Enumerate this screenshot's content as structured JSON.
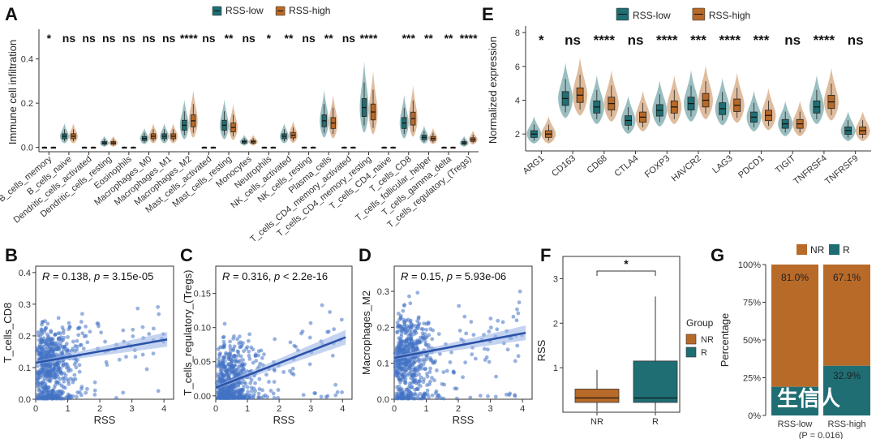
{
  "colors": {
    "low": "#1f6e74",
    "high": "#b86a28",
    "scatter": "#4472c4",
    "fit": "#2a52a8",
    "ribbon": "#9db5e6"
  },
  "chart_data": [
    {
      "panel": "A",
      "type": "violin",
      "ylabel": "Immune cell infiltration",
      "yticks": [
        "0.0",
        "0.2",
        "0.4"
      ],
      "ylim": [
        -0.02,
        0.52
      ],
      "legend": [
        "RSS-low",
        "RSS-high"
      ],
      "categories": [
        "B_cells_memory",
        "B_cells_naive",
        "Dendritic_cells_activated",
        "Dendritic_cells_resting",
        "Eosinophils",
        "Macrophages_M0",
        "Macrophages_M1",
        "Macrophages_M2",
        "Mast_cells_activated",
        "Mast_cells_resting",
        "Monocytes",
        "Neutrophils",
        "NK_cells_activated",
        "NK_cells_resting",
        "Plasma_cells",
        "T_cells_CD4_memory_activated",
        "T_cells_CD4_memory_resting",
        "T_cells_CD4_naive",
        "T_cells_CD8",
        "T_cells_follicular_helper",
        "T_cells_gamma_delta",
        "T_cells_regulatory_(Tregs)"
      ],
      "significance": [
        "*",
        "ns",
        "ns",
        "ns",
        "ns",
        "ns",
        "ns",
        "****",
        "ns",
        "**",
        "ns",
        "*",
        "**",
        "ns",
        "**",
        "ns",
        "****",
        "",
        "***",
        "**",
        "**",
        "****"
      ],
      "series": [
        {
          "name": "RSS-low",
          "medians": [
            0.0,
            0.05,
            0.0,
            0.02,
            0.0,
            0.04,
            0.05,
            0.1,
            0.0,
            0.1,
            0.025,
            0.0,
            0.05,
            0.0,
            0.12,
            0.0,
            0.18,
            0.0,
            0.11,
            0.045,
            0.0,
            0.02
          ]
        },
        {
          "name": "RSS-high",
          "medians": [
            0.0,
            0.05,
            0.0,
            0.02,
            0.0,
            0.05,
            0.05,
            0.12,
            0.0,
            0.09,
            0.025,
            0.0,
            0.055,
            0.0,
            0.11,
            0.0,
            0.16,
            0.0,
            0.13,
            0.04,
            0.0,
            0.035
          ]
        }
      ]
    },
    {
      "panel": "E",
      "type": "violin",
      "ylabel": "Normalized expression",
      "yticks": [
        "2",
        "4",
        "6",
        "8"
      ],
      "ylim": [
        1,
        8.2
      ],
      "legend": [
        "RSS-low",
        "RSS-high"
      ],
      "categories": [
        "ARG1",
        "CD163",
        "CD68",
        "CTLA4",
        "FOXP3",
        "HAVCR2",
        "LAG3",
        "PDCD1",
        "TIGIT",
        "TNFRSF4",
        "TNFRSF9"
      ],
      "significance": [
        "*",
        "ns",
        "****",
        "ns",
        "****",
        "***",
        "****",
        "***",
        "ns",
        "****",
        "ns"
      ],
      "series": [
        {
          "name": "RSS-low",
          "medians": [
            2.0,
            4.1,
            3.6,
            2.8,
            3.4,
            3.8,
            3.5,
            3.0,
            2.6,
            3.6,
            2.2
          ]
        },
        {
          "name": "RSS-high",
          "medians": [
            2.0,
            4.3,
            3.8,
            3.0,
            3.6,
            4.0,
            3.7,
            3.1,
            2.6,
            3.9,
            2.2
          ]
        }
      ]
    },
    {
      "panel": "B",
      "type": "scatter",
      "xlabel": "RSS",
      "ylabel": "T_cells_CD8",
      "xticks": [
        "0",
        "1",
        "2",
        "3",
        "4"
      ],
      "yticks": [
        "0.0",
        "0.1",
        "0.2",
        "0.3",
        "0.4"
      ],
      "xlim": [
        0,
        4.3
      ],
      "ylim": [
        0,
        0.42
      ],
      "stat": {
        "R": "0.138",
        "p": "3.15e-05",
        "op": "="
      },
      "fit": {
        "intercept": 0.115,
        "slope": 0.018
      },
      "seed": 11
    },
    {
      "panel": "C",
      "type": "scatter",
      "xlabel": "RSS",
      "ylabel": "T_cells_regulatory_(Tregs)",
      "xticks": [
        "0",
        "1",
        "2",
        "3",
        "4"
      ],
      "yticks": [
        "0.00",
        "0.05",
        "0.10",
        "0.15"
      ],
      "xlim": [
        0,
        4.3
      ],
      "ylim": [
        -0.005,
        0.19
      ],
      "stat": {
        "R": "0.316",
        "p": "2.2e-16",
        "op": "<"
      },
      "fit": {
        "intercept": 0.012,
        "slope": 0.018
      },
      "seed": 23
    },
    {
      "panel": "D",
      "type": "scatter",
      "xlabel": "RSS",
      "ylabel": "Macrophages_M2",
      "xticks": [
        "0",
        "1",
        "2",
        "3",
        "4"
      ],
      "yticks": [
        "0.0",
        "0.1",
        "0.2",
        "0.3"
      ],
      "xlim": [
        0,
        4.3
      ],
      "ylim": [
        0,
        0.37
      ],
      "stat": {
        "R": "0.15",
        "p": "5.93e-06",
        "op": "="
      },
      "fit": {
        "intercept": 0.115,
        "slope": 0.017
      },
      "seed": 37
    },
    {
      "panel": "F",
      "type": "box",
      "xlabel": "",
      "ylabel": "RSS",
      "categories": [
        "NR",
        "R"
      ],
      "yticks": [
        "1",
        "2",
        "3"
      ],
      "ylim": [
        0,
        3.5
      ],
      "boxes": [
        {
          "name": "NR",
          "q1": 0.22,
          "median": 0.32,
          "q3": 0.52,
          "min": 0.02,
          "max": 0.95
        },
        {
          "name": "R",
          "q1": 0.22,
          "median": 0.32,
          "q3": 1.15,
          "min": 0.02,
          "max": 2.6
        }
      ],
      "significance": "*",
      "legend_title": "Group",
      "legend": [
        "NR",
        "R"
      ]
    },
    {
      "panel": "G",
      "type": "stacked_bar",
      "ylabel": "Percentage",
      "categories": [
        "RSS-low",
        "RSS-high"
      ],
      "yticks": [
        "0%",
        "25%",
        "50%",
        "75%",
        "100%"
      ],
      "series": [
        {
          "name": "NR",
          "values": [
            81.0,
            67.1
          ],
          "labels": [
            "81.0%",
            "67.1%"
          ]
        },
        {
          "name": "R",
          "values": [
            19.0,
            32.9
          ],
          "labels": [
            "",
            "32.9%"
          ]
        }
      ],
      "note": "(P = 0.016)",
      "legend": [
        "NR",
        "R"
      ]
    }
  ],
  "watermark": "生信人"
}
